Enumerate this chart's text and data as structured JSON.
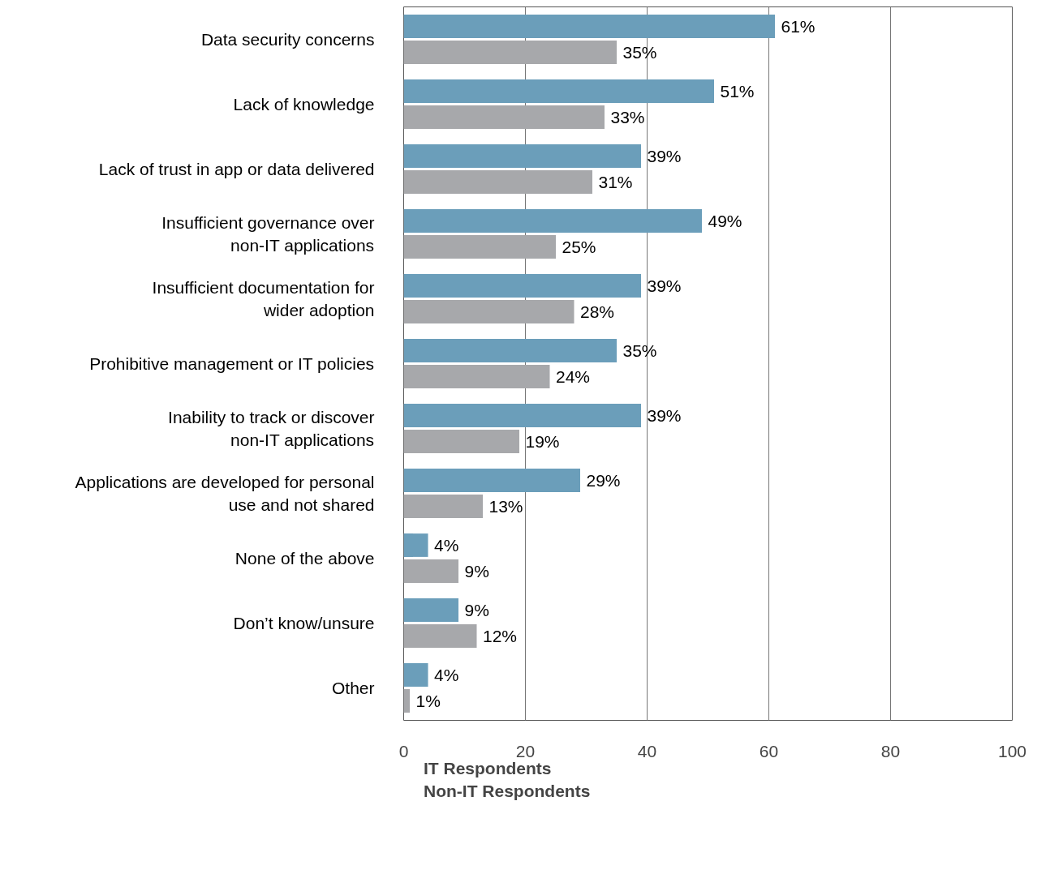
{
  "chart_data": {
    "type": "bar",
    "orientation": "horizontal",
    "categories": [
      "Data security concerns",
      "Lack of knowledge",
      "Lack of trust in app or data delivered",
      "Insufficient governance over\nnon-IT applications",
      "Insufficient documentation for\nwider adoption",
      "Prohibitive management or IT policies",
      "Inability to track or discover\nnon-IT applications",
      "Applications are developed for personal\nuse and not shared",
      "None of the above",
      "Don’t know/unsure",
      "Other"
    ],
    "series": [
      {
        "name": "IT Respondents",
        "color": "#6b9eba",
        "values": [
          61,
          51,
          39,
          49,
          39,
          35,
          39,
          29,
          4,
          9,
          4
        ],
        "value_labels": [
          "61%",
          "51%",
          "39%",
          "49%",
          "39%",
          "35%",
          "39%",
          "29%",
          "4%",
          "9%",
          "4%"
        ]
      },
      {
        "name": "Non-IT Respondents",
        "color": "#a7a8ab",
        "values": [
          35,
          33,
          31,
          25,
          28,
          24,
          19,
          13,
          9,
          12,
          1
        ],
        "value_labels": [
          "35%",
          "33%",
          "31%",
          "25%",
          "28%",
          "24%",
          "19%",
          "13%",
          "9%",
          "12%",
          "1%"
        ]
      }
    ],
    "xlim": [
      0,
      100
    ],
    "xticks": [
      0,
      20,
      40,
      60,
      80,
      100
    ],
    "grid": "x",
    "legend": "bottom left"
  }
}
